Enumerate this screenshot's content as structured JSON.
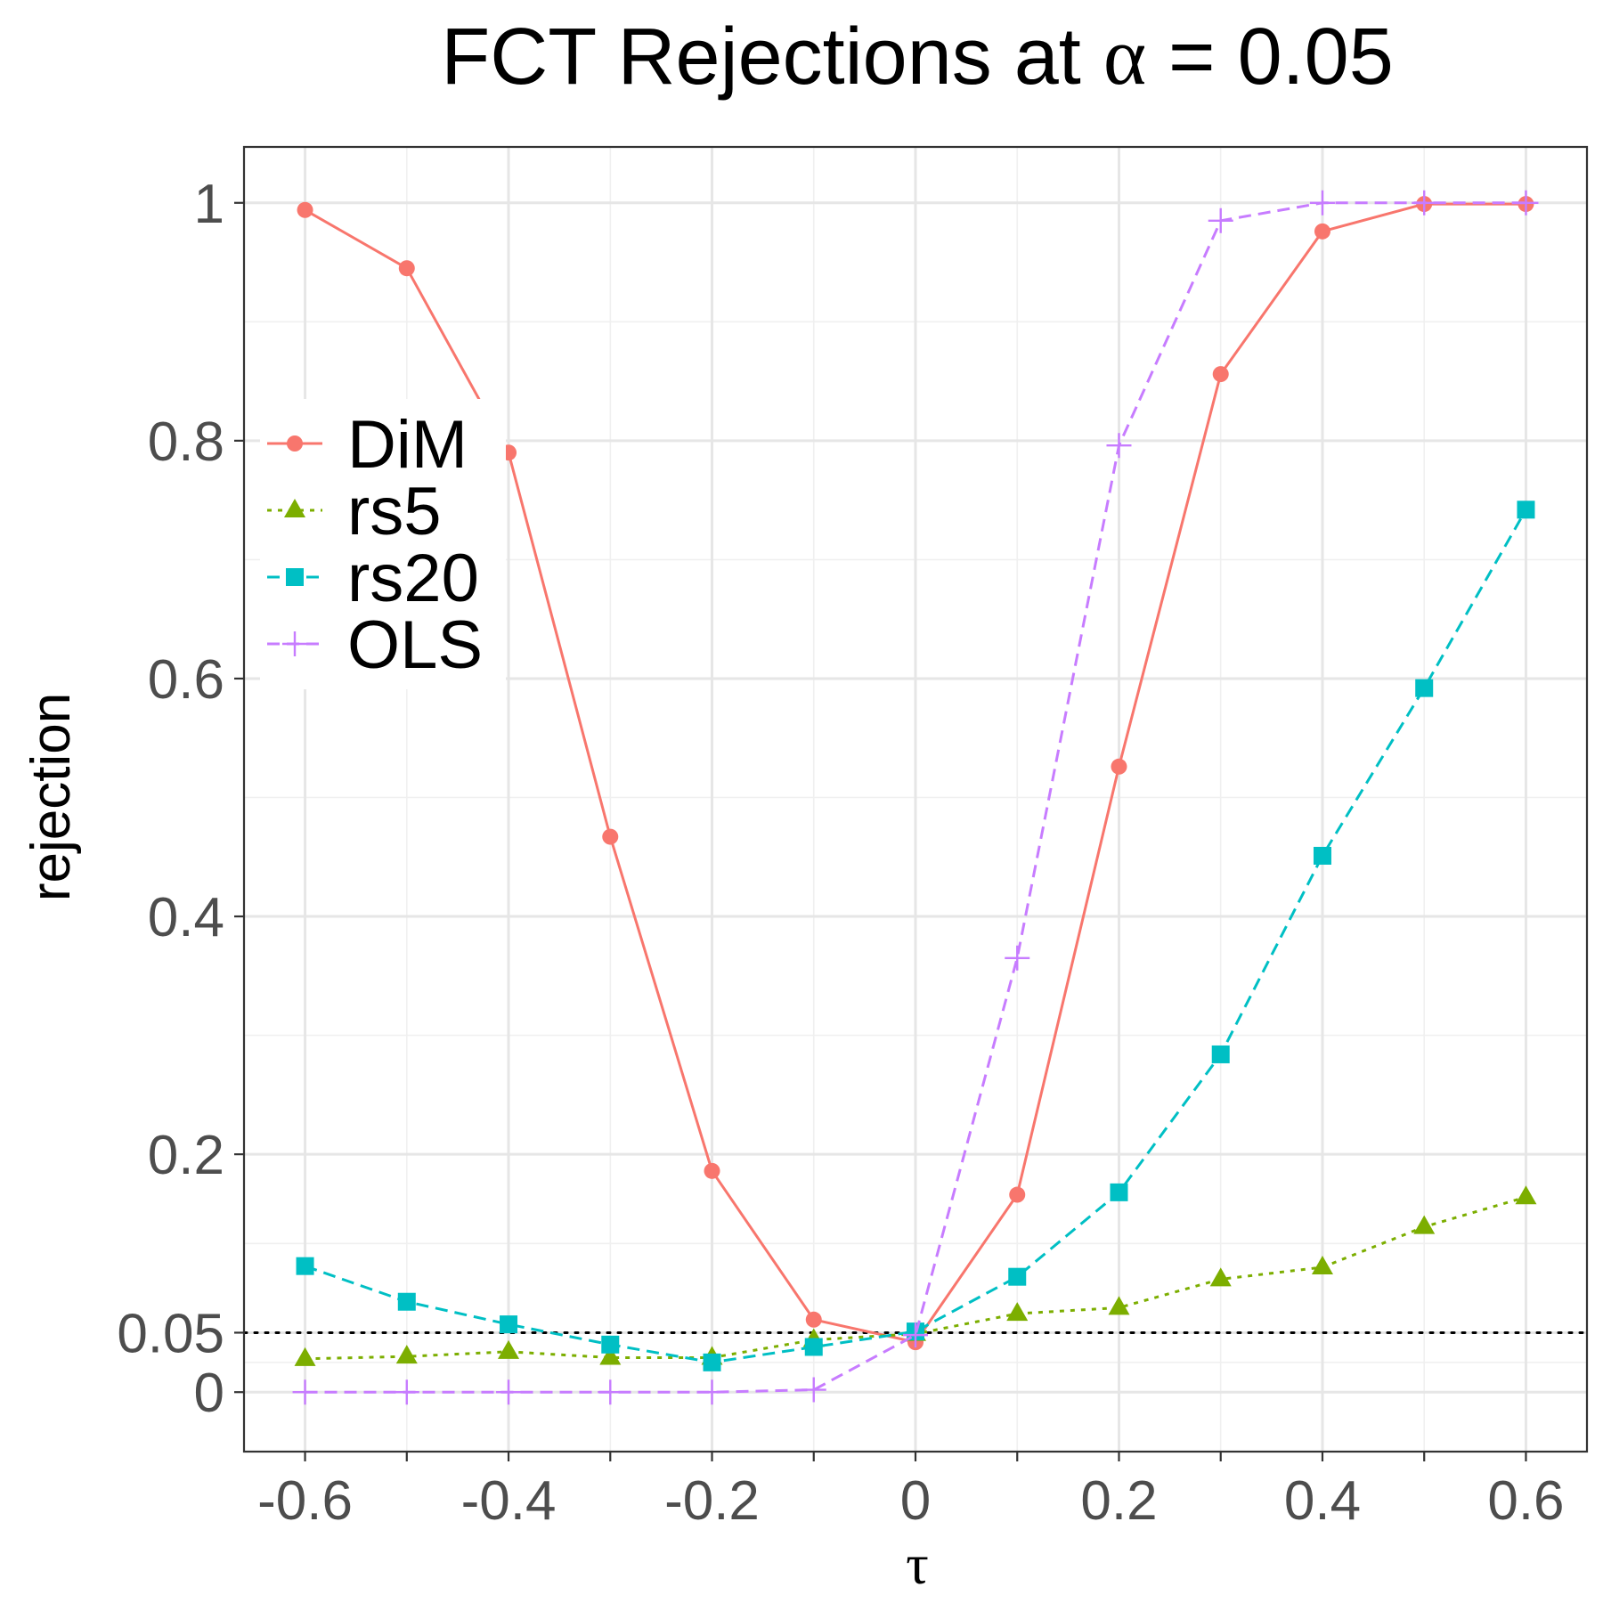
{
  "chart_data": {
    "type": "line",
    "title": "FCT Rejections at α = 0.05",
    "title_prefix": "FCT Rejections at ",
    "title_symbol": "α",
    "title_suffix": " = 0.05",
    "xlabel": "τ",
    "ylabel": "rejection",
    "x": [
      -0.6,
      -0.5,
      -0.4,
      -0.3,
      -0.2,
      -0.1,
      0,
      0.1,
      0.2,
      0.3,
      0.4,
      0.5,
      0.6
    ],
    "xlim": [
      -0.66,
      0.66
    ],
    "ylim": [
      -0.05,
      1.047
    ],
    "x_ticks": [
      {
        "value": -0.6,
        "label": "-0.6"
      },
      {
        "value": -0.4,
        "label": "-0.4"
      },
      {
        "value": -0.2,
        "label": "-0.2"
      },
      {
        "value": 0,
        "label": "0"
      },
      {
        "value": 0.2,
        "label": "0.2"
      },
      {
        "value": 0.4,
        "label": "0.4"
      },
      {
        "value": 0.6,
        "label": "0.6"
      }
    ],
    "y_ticks": [
      {
        "value": 0,
        "label": "0"
      },
      {
        "value": 0.05,
        "label": "0.05"
      },
      {
        "value": 0.2,
        "label": "0.2"
      },
      {
        "value": 0.4,
        "label": "0.4"
      },
      {
        "value": 0.6,
        "label": "0.6"
      },
      {
        "value": 0.8,
        "label": "0.8"
      },
      {
        "value": 1,
        "label": "1"
      }
    ],
    "reference_line": {
      "y": 0.05,
      "style": "dotted",
      "color": "#000000"
    },
    "grid": true,
    "legend_position": "left, inside plot",
    "series": [
      {
        "name": "DiM",
        "marker": "circle",
        "dash": "solid",
        "color": "#F8766D",
        "values": [
          0.994,
          0.945,
          0.79,
          0.467,
          0.186,
          0.061,
          0.042,
          0.166,
          0.526,
          0.856,
          0.976,
          0.999,
          0.999
        ]
      },
      {
        "name": "rs5",
        "marker": "triangle",
        "dash": "dotted",
        "color": "#7CAE00",
        "values": [
          0.028,
          0.03,
          0.034,
          0.029,
          0.029,
          0.044,
          0.049,
          0.066,
          0.071,
          0.095,
          0.105,
          0.139,
          0.164
        ]
      },
      {
        "name": "rs20",
        "marker": "square",
        "dash": "dashed",
        "color": "#00BFC4",
        "values": [
          0.106,
          0.076,
          0.057,
          0.04,
          0.025,
          0.038,
          0.051,
          0.097,
          0.168,
          0.284,
          0.451,
          0.592,
          0.742
        ]
      },
      {
        "name": "OLS",
        "marker": "plus",
        "dash": "dashed",
        "color": "#C77CFF",
        "values": [
          0.0,
          0.0,
          0.0,
          0.0,
          0.0,
          0.002,
          0.048,
          0.365,
          0.796,
          0.985,
          1.0,
          1.0,
          1.0
        ]
      }
    ]
  }
}
